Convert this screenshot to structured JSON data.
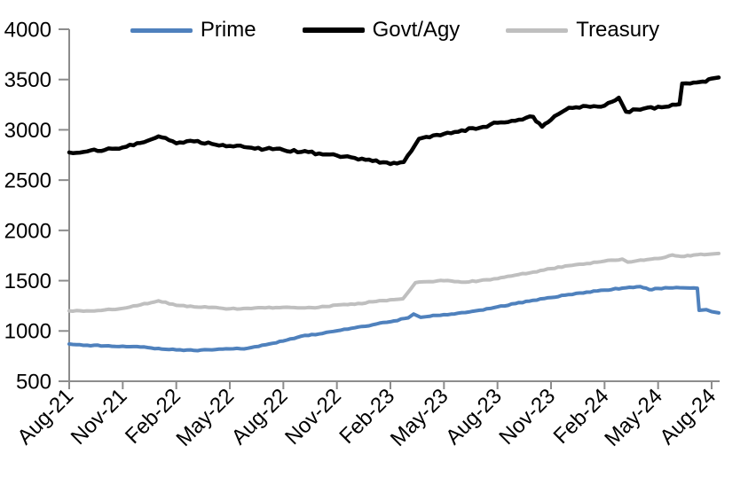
{
  "chart_data": {
    "type": "line",
    "title": "",
    "legend_position": "top",
    "background": "#FFFFFF",
    "axis_color": "#8C8C8C",
    "text_color": "#000000",
    "grid": "off",
    "x_axis": {
      "unit": "month",
      "tick_every_months": 3,
      "tick_labels": [
        "Aug-21",
        "Nov-21",
        "Feb-22",
        "May-22",
        "Aug-22",
        "Nov-22",
        "Feb-23",
        "May-23",
        "Aug-23",
        "Nov-23",
        "Feb-24",
        "May-24",
        "Aug-24"
      ],
      "data_span_months": 36.4,
      "label_rotation_deg": 45
    },
    "y_axis": {
      "min": 500,
      "max": 4000,
      "step": 500,
      "tick_labels": [
        "500",
        "1000",
        "1500",
        "2000",
        "2500",
        "3000",
        "3500",
        "4000"
      ]
    },
    "series": [
      {
        "name": "Prime",
        "color": "#4F81BD",
        "line_width": 4,
        "texture_jitter": 5,
        "points": [
          [
            0,
            870
          ],
          [
            1,
            858
          ],
          [
            2,
            852
          ],
          [
            3,
            848
          ],
          [
            4,
            840
          ],
          [
            5,
            826
          ],
          [
            6,
            812
          ],
          [
            7,
            806
          ],
          [
            8,
            812
          ],
          [
            9,
            822
          ],
          [
            10,
            828
          ],
          [
            11,
            862
          ],
          [
            12,
            900
          ],
          [
            13,
            948
          ],
          [
            14,
            970
          ],
          [
            15,
            1002
          ],
          [
            16,
            1032
          ],
          [
            17,
            1062
          ],
          [
            18,
            1092
          ],
          [
            19,
            1130
          ],
          [
            19.3,
            1168
          ],
          [
            19.7,
            1136
          ],
          [
            20,
            1142
          ],
          [
            21,
            1162
          ],
          [
            22,
            1182
          ],
          [
            23,
            1206
          ],
          [
            24,
            1240
          ],
          [
            25,
            1272
          ],
          [
            26,
            1305
          ],
          [
            27,
            1332
          ],
          [
            28,
            1362
          ],
          [
            29,
            1386
          ],
          [
            30,
            1406
          ],
          [
            31,
            1426
          ],
          [
            32,
            1442
          ],
          [
            32.5,
            1412
          ],
          [
            33,
            1422
          ],
          [
            34,
            1432
          ],
          [
            35,
            1428
          ],
          [
            35.2,
            1425
          ],
          [
            35.3,
            1205
          ],
          [
            35.7,
            1212
          ],
          [
            36,
            1192
          ],
          [
            36.4,
            1180
          ]
        ]
      },
      {
        "name": "Govt/Agy",
        "color": "#000000",
        "line_width": 4.5,
        "texture_jitter": 13,
        "points": [
          [
            0,
            2775
          ],
          [
            1,
            2785
          ],
          [
            2,
            2800
          ],
          [
            3,
            2825
          ],
          [
            4,
            2870
          ],
          [
            5,
            2935
          ],
          [
            6,
            2865
          ],
          [
            7,
            2885
          ],
          [
            8,
            2860
          ],
          [
            9,
            2840
          ],
          [
            10,
            2825
          ],
          [
            11,
            2810
          ],
          [
            12,
            2800
          ],
          [
            13,
            2780
          ],
          [
            14,
            2765
          ],
          [
            15,
            2745
          ],
          [
            16,
            2720
          ],
          [
            17,
            2690
          ],
          [
            18,
            2660
          ],
          [
            18.75,
            2680
          ],
          [
            19.6,
            2910
          ],
          [
            20,
            2930
          ],
          [
            21,
            2960
          ],
          [
            22,
            2995
          ],
          [
            23,
            3020
          ],
          [
            24,
            3070
          ],
          [
            25,
            3090
          ],
          [
            26,
            3130
          ],
          [
            26.5,
            3030
          ],
          [
            27,
            3100
          ],
          [
            28,
            3220
          ],
          [
            29,
            3235
          ],
          [
            30,
            3240
          ],
          [
            30.8,
            3320
          ],
          [
            31.2,
            3180
          ],
          [
            32,
            3200
          ],
          [
            33,
            3230
          ],
          [
            34,
            3250
          ],
          [
            34.2,
            3255
          ],
          [
            34.35,
            3460
          ],
          [
            35,
            3470
          ],
          [
            35.5,
            3480
          ],
          [
            36,
            3510
          ],
          [
            36.4,
            3520
          ]
        ]
      },
      {
        "name": "Treasury",
        "color": "#BFBFBF",
        "line_width": 4,
        "texture_jitter": 5,
        "points": [
          [
            0,
            1200
          ],
          [
            1,
            1200
          ],
          [
            2,
            1210
          ],
          [
            3,
            1225
          ],
          [
            4,
            1260
          ],
          [
            5,
            1300
          ],
          [
            6,
            1255
          ],
          [
            7,
            1240
          ],
          [
            8,
            1235
          ],
          [
            9,
            1220
          ],
          [
            10,
            1225
          ],
          [
            11,
            1230
          ],
          [
            12,
            1235
          ],
          [
            13,
            1230
          ],
          [
            14,
            1235
          ],
          [
            15,
            1258
          ],
          [
            16,
            1265
          ],
          [
            17,
            1290
          ],
          [
            18,
            1310
          ],
          [
            18.7,
            1320
          ],
          [
            19.4,
            1480
          ],
          [
            20,
            1490
          ],
          [
            21,
            1500
          ],
          [
            22,
            1485
          ],
          [
            23,
            1500
          ],
          [
            24,
            1520
          ],
          [
            25,
            1555
          ],
          [
            26,
            1585
          ],
          [
            27,
            1620
          ],
          [
            28,
            1650
          ],
          [
            29,
            1670
          ],
          [
            30,
            1695
          ],
          [
            31,
            1715
          ],
          [
            31.3,
            1685
          ],
          [
            32,
            1705
          ],
          [
            33,
            1720
          ],
          [
            33.8,
            1755
          ],
          [
            34.3,
            1740
          ],
          [
            35,
            1755
          ],
          [
            36,
            1765
          ],
          [
            36.4,
            1770
          ]
        ]
      }
    ]
  }
}
